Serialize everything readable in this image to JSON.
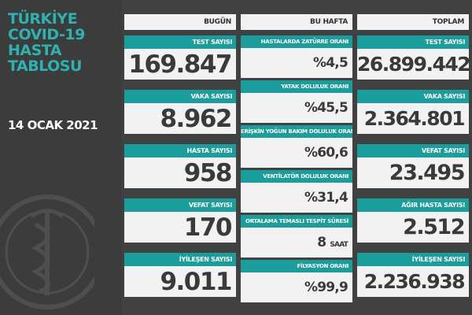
{
  "sidebar": {
    "title_lines": [
      "TÜRKİYE",
      "COVID-19",
      "HASTA",
      "TABLOSU"
    ],
    "date": "14 OCAK 2021"
  },
  "today": {
    "header": "BUGÜN",
    "cards": [
      {
        "label": "TEST SAYISI",
        "value": "169.847"
      },
      {
        "label": "VAKA SAYISI",
        "value": "8.962"
      },
      {
        "label": "HASTA SAYISI",
        "value": "958"
      },
      {
        "label": "VEFAT SAYISI",
        "value": "170"
      },
      {
        "label": "İYİLEŞEN SAYISI",
        "value": "9.011"
      }
    ]
  },
  "this_week": {
    "header": "BU HAFTA",
    "cards": [
      {
        "label": "HASTALARDA ZATÜRRE ORANI",
        "value": "%4,5"
      },
      {
        "label": "YATAK DOLULUK ORANI",
        "value": "%45,5"
      },
      {
        "label": "ERİŞKİN YOĞUN BAKIM DOLULUK ORANI",
        "value": "%60,6"
      },
      {
        "label": "VENTİLATÖR DOLULUK ORANI",
        "value": "%31,4"
      },
      {
        "label": "ORTALAMA TEMASLI TESPİT SÜRESİ",
        "value": "8",
        "unit": "SAAT"
      },
      {
        "label": "FİLYASYON ORANI",
        "value": "%99,9"
      }
    ]
  },
  "total": {
    "header": "TOPLAM",
    "cards": [
      {
        "label": "TEST SAYISI",
        "value": "26.899.442"
      },
      {
        "label": "VAKA SAYISI",
        "value": "2.364.801"
      },
      {
        "label": "VEFAT SAYISI",
        "value": "23.495"
      },
      {
        "label": "AĞIR HASTA SAYISI",
        "value": "2.512"
      },
      {
        "label": "İYİLEŞEN SAYISI",
        "value": "2.236.938"
      }
    ]
  },
  "colors": {
    "accent": "#1a9e9b",
    "title": "#2bb3b0",
    "background": "#414141",
    "card": "#f2f2f2"
  },
  "icons": {
    "emblem": "ministry-of-health-emblem"
  }
}
